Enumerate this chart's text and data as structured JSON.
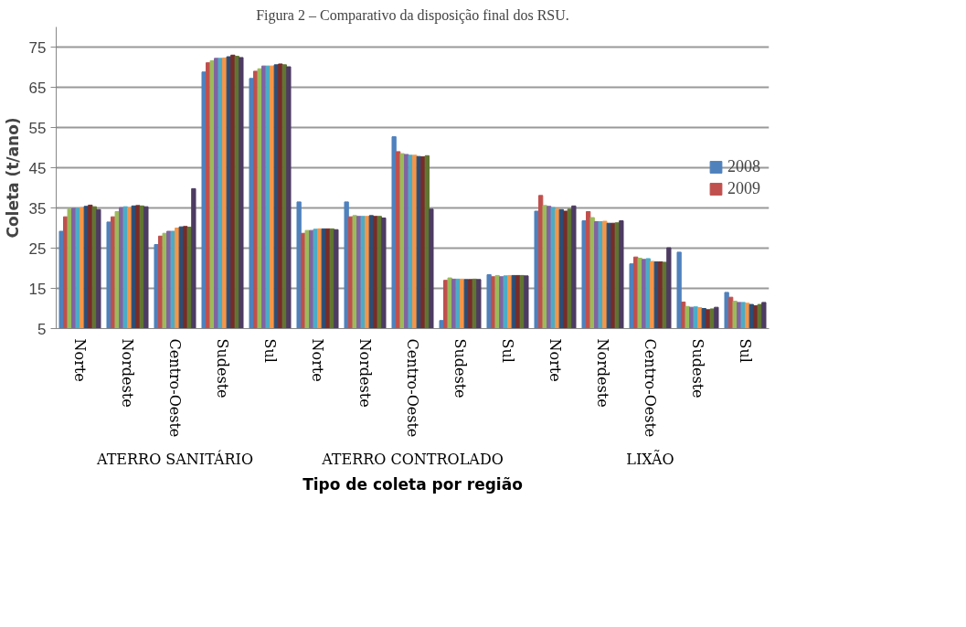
{
  "chart_data": {
    "type": "bar",
    "title": "Figura 2 – Comparativo da disposição final dos RSU.",
    "xlabel": "Tipo de coleta por região",
    "ylabel": "Coleta (t/ano)",
    "categories": [
      "Norte",
      "Nordeste",
      "Centro-Oeste",
      "Sudeste",
      "Sul",
      "Norte",
      "Nordeste",
      "Centro-Oeste",
      "Sudeste",
      "Sul",
      "Norte",
      "Nordeste",
      "Centro-Oeste",
      "Sudeste",
      "Sul"
    ],
    "annotations": [
      "ATERRO SANITÁRIO",
      "ATERRO CONTROLADO",
      "LIXÃO"
    ],
    "ylim": [
      5,
      80
    ],
    "yticks": [
      5,
      15,
      25,
      35,
      45,
      55,
      65,
      75
    ],
    "grid": "y",
    "legend": "right",
    "series": [
      {
        "name": "2008",
        "color": "#4f81bd",
        "values": [
          29.2,
          31.5,
          25.9,
          68.8,
          67.2,
          36.5,
          36.5,
          52.7,
          7.0,
          18.4,
          34.2,
          31.8,
          21.1,
          24.0,
          14.0
        ]
      },
      {
        "name": "2009",
        "color": "#c0504d",
        "values": [
          32.8,
          32.8,
          28.0,
          71.1,
          69.0,
          28.7,
          32.8,
          49.0,
          17.0,
          17.9,
          38.1,
          34.1,
          22.8,
          11.6,
          12.8
        ]
      },
      {
        "color": "#9bbb59",
        "values": [
          34.7,
          34.1,
          28.7,
          71.6,
          69.6,
          29.4,
          33.1,
          48.5,
          17.6,
          18.2,
          35.6,
          32.6,
          22.5,
          10.5,
          11.8
        ]
      },
      {
        "color": "#8064a2",
        "values": [
          34.9,
          35.1,
          29.2,
          72.2,
          70.3,
          29.4,
          32.9,
          48.3,
          17.3,
          17.9,
          35.4,
          31.6,
          22.2,
          10.3,
          11.5
        ]
      },
      {
        "color": "#4bacc6",
        "values": [
          34.9,
          35.3,
          29.2,
          72.2,
          70.3,
          29.7,
          32.9,
          48.1,
          17.3,
          18.1,
          35.1,
          31.6,
          22.4,
          10.4,
          11.5
        ]
      },
      {
        "color": "#f79646",
        "values": [
          35.1,
          35.1,
          30.0,
          72.3,
          70.3,
          29.8,
          32.9,
          48.1,
          17.3,
          18.2,
          34.7,
          31.7,
          21.7,
          10.2,
          11.3
        ]
      },
      {
        "color": "#2c4d75",
        "values": [
          35.4,
          35.5,
          30.3,
          72.6,
          70.6,
          29.8,
          33.1,
          47.8,
          17.2,
          18.2,
          34.6,
          31.2,
          21.6,
          10.0,
          11.0
        ]
      },
      {
        "color": "#772c2a",
        "values": [
          35.7,
          35.6,
          30.4,
          73.0,
          70.8,
          29.8,
          32.9,
          47.7,
          17.2,
          18.2,
          34.2,
          31.2,
          21.6,
          9.7,
          10.7
        ]
      },
      {
        "color": "#5f7530",
        "values": [
          35.3,
          35.5,
          30.2,
          72.7,
          70.6,
          29.8,
          32.9,
          48.0,
          17.3,
          18.2,
          34.7,
          31.3,
          21.5,
          9.9,
          11.0
        ]
      },
      {
        "color": "#4d3b62",
        "values": [
          34.6,
          35.3,
          39.8,
          72.4,
          70.1,
          29.6,
          32.5,
          34.7,
          17.2,
          18.1,
          35.5,
          31.8,
          25.1,
          10.3,
          11.5
        ]
      }
    ]
  }
}
